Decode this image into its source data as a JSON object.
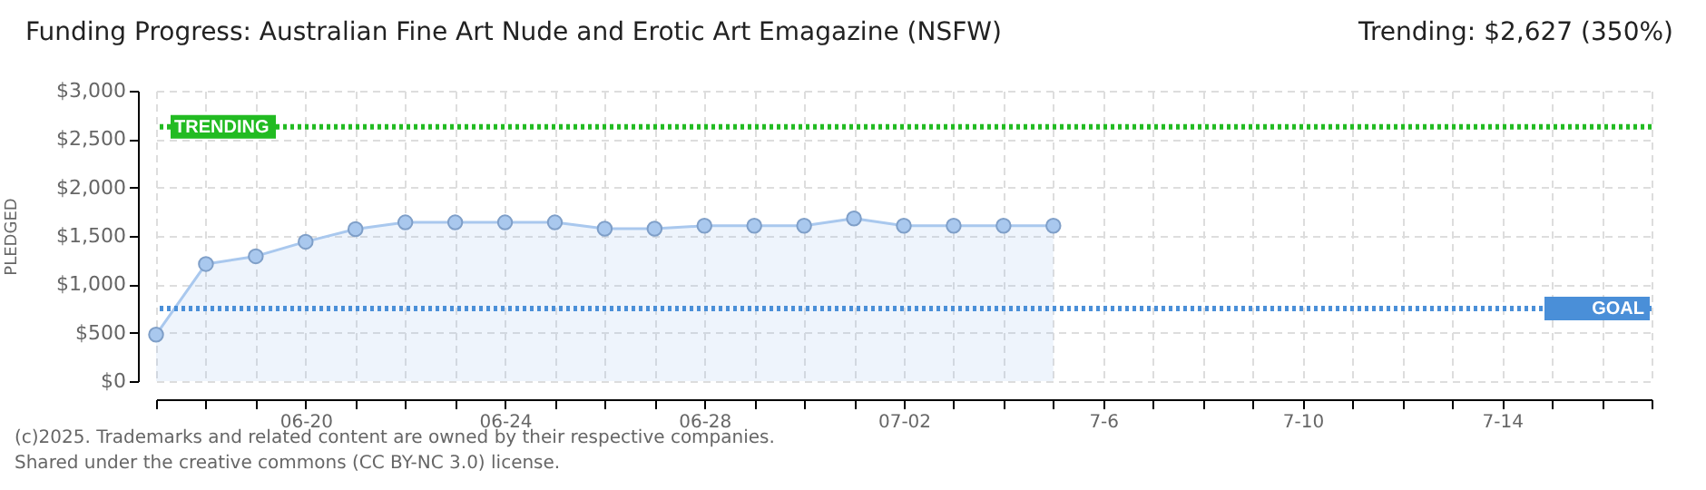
{
  "chart_data": {
    "type": "area",
    "title": "Funding Progress: Australian Fine Art Nude and Erotic Art Emagazine (NSFW)",
    "subtitle": "Trending: $2,627 (350%)",
    "ylabel": "PLEDGED",
    "annotations": [
      "(c)2025. Trademarks and related content are owned by their respective companies.",
      "Shared under the creative commons (CC BY-NC 3.0) license."
    ],
    "x": [
      "2025-06-17",
      "2025-06-18",
      "2025-06-19",
      "2025-06-20",
      "2025-06-21",
      "2025-06-22",
      "2025-06-23",
      "2025-06-24",
      "2025-06-25",
      "2025-06-26",
      "2025-06-27",
      "2025-06-28",
      "2025-06-29",
      "2025-06-30",
      "2025-07-01",
      "2025-07-02",
      "2025-07-03",
      "2025-07-04",
      "2025-07-05"
    ],
    "series": [
      {
        "color": "#a9c8ee",
        "values": [
          480,
          1210,
          1290,
          1440,
          1570,
          1640,
          1640,
          1640,
          1640,
          1575,
          1575,
          1605,
          1605,
          1605,
          1680,
          1605,
          1605,
          1605,
          1605
        ]
      }
    ],
    "xlim": [
      "2025-06-17",
      "2025-07-17"
    ],
    "xticks": [
      {
        "value": "2025-06-17",
        "label": null
      },
      {
        "value": "2025-06-18",
        "label": null
      },
      {
        "value": "2025-06-19",
        "label": null
      },
      {
        "value": "2025-06-20",
        "label": "06-20"
      },
      {
        "value": "2025-06-21",
        "label": null
      },
      {
        "value": "2025-06-22",
        "label": null
      },
      {
        "value": "2025-06-23",
        "label": null
      },
      {
        "value": "2025-06-24",
        "label": "06-24"
      },
      {
        "value": "2025-06-25",
        "label": null
      },
      {
        "value": "2025-06-26",
        "label": null
      },
      {
        "value": "2025-06-27",
        "label": null
      },
      {
        "value": "2025-06-28",
        "label": "06-28"
      },
      {
        "value": "2025-06-29",
        "label": null
      },
      {
        "value": "2025-06-30",
        "label": null
      },
      {
        "value": "2025-07-01",
        "label": null
      },
      {
        "value": "2025-07-02",
        "label": "07-02"
      },
      {
        "value": "2025-07-03",
        "label": null
      },
      {
        "value": "2025-07-04",
        "label": null
      },
      {
        "value": "2025-07-05",
        "label": null
      },
      {
        "value": "2025-07-06",
        "label": "7-6"
      },
      {
        "value": "2025-07-07",
        "label": null
      },
      {
        "value": "2025-07-08",
        "label": null
      },
      {
        "value": "2025-07-09",
        "label": null
      },
      {
        "value": "2025-07-10",
        "label": "7-10"
      },
      {
        "value": "2025-07-11",
        "label": null
      },
      {
        "value": "2025-07-12",
        "label": null
      },
      {
        "value": "2025-07-13",
        "label": null
      },
      {
        "value": "2025-07-14",
        "label": "7-14"
      },
      {
        "value": "2025-07-15",
        "label": null
      },
      {
        "value": "2025-07-16",
        "label": null
      },
      {
        "value": "2025-07-17",
        "label": null
      }
    ],
    "ylim": [
      0,
      3000
    ],
    "yticks": [
      {
        "value": 0,
        "label": "$0"
      },
      {
        "value": 500,
        "label": "$500"
      },
      {
        "value": 1000,
        "label": "$1,000"
      },
      {
        "value": 1500,
        "label": "$1,500"
      },
      {
        "value": 2000,
        "label": "$2,000"
      },
      {
        "value": 2500,
        "label": "$2,500"
      },
      {
        "value": 3000,
        "label": "$3,000"
      }
    ],
    "ref_lines": [
      {
        "axis": "y",
        "value": 2627,
        "label": "TRENDING",
        "color": "#22bb22",
        "line_style": "dotted"
      },
      {
        "axis": "y",
        "value": 750,
        "label": "GOAL",
        "color": "#4a8fd8",
        "line_style": "dotted"
      }
    ],
    "grid": true,
    "marker": "circle"
  }
}
